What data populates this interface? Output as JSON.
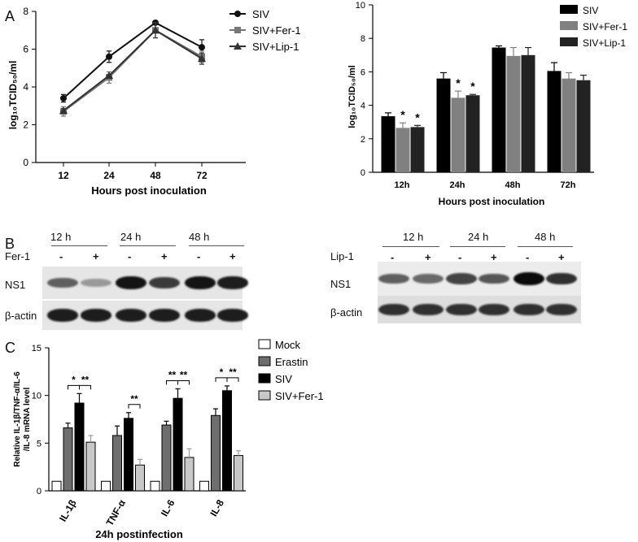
{
  "panels": {
    "a": "A",
    "b": "B",
    "c": "C"
  },
  "chart_data": [
    {
      "type": "line",
      "x": [
        12,
        24,
        48,
        72
      ],
      "xlabel": "Hours post inoculation",
      "ylabel": "log₁₀TCID₅₀/ml",
      "ylim": [
        0,
        8
      ],
      "yticks": [
        0,
        2,
        4,
        6,
        8
      ],
      "legend": "top-right",
      "series": [
        {
          "name": "SIV",
          "values": [
            3.4,
            5.6,
            7.4,
            6.1
          ],
          "errors": [
            0.2,
            0.3,
            0.1,
            0.4
          ],
          "color": "#111111",
          "marker": "circle"
        },
        {
          "name": "SIV+Fer-1",
          "values": [
            2.7,
            4.5,
            7.0,
            5.6
          ],
          "errors": [
            0.25,
            0.3,
            0.4,
            0.3
          ],
          "color": "#777777",
          "marker": "square"
        },
        {
          "name": "SIV+Lip-1",
          "values": [
            2.75,
            4.6,
            7.0,
            5.5
          ],
          "errors": [
            0.1,
            0.05,
            0.4,
            0.3
          ],
          "color": "#333333",
          "marker": "triangle"
        }
      ]
    },
    {
      "type": "bar",
      "categories": [
        "12h",
        "24h",
        "48h",
        "72h"
      ],
      "xlabel": "Hours post inoculation",
      "ylabel": "log₁₀TCID₅₀/ml",
      "ylim": [
        0,
        10
      ],
      "yticks": [
        0,
        2,
        4,
        6,
        8,
        10
      ],
      "legend": "top-right",
      "series": [
        {
          "name": "SIV",
          "values": [
            3.35,
            5.6,
            7.45,
            6.05
          ],
          "errors": [
            0.2,
            0.35,
            0.1,
            0.5
          ],
          "color": "#000000"
        },
        {
          "name": "SIV+Fer-1",
          "values": [
            2.65,
            4.45,
            6.95,
            5.6
          ],
          "errors": [
            0.3,
            0.4,
            0.5,
            0.35
          ],
          "color": "#808080"
        },
        {
          "name": "SIV+Lip-1",
          "values": [
            2.7,
            4.6,
            7.0,
            5.5
          ],
          "errors": [
            0.1,
            0.05,
            0.45,
            0.3
          ],
          "color": "#222222"
        }
      ],
      "annotations": [
        {
          "category": "12h",
          "series": "SIV+Fer-1",
          "text": "*"
        },
        {
          "category": "12h",
          "series": "SIV+Lip-1",
          "text": "*"
        },
        {
          "category": "24h",
          "series": "SIV+Fer-1",
          "text": "*"
        },
        {
          "category": "24h",
          "series": "SIV+Lip-1",
          "text": "*"
        }
      ]
    },
    {
      "type": "bar",
      "categories": [
        "IL-1β",
        "TNF-α",
        "IL-6",
        "IL-8"
      ],
      "xlabel": "24h postinfection",
      "ylabel": "Relative IL-1β/TNF-α/IL-6 /IL-8 mRNA level",
      "ylabel_lines": [
        "Relative IL-1β/TNF-α/IL-6",
        "/IL-8 mRNA level"
      ],
      "ylim": [
        0,
        15
      ],
      "yticks": [
        0,
        5,
        10,
        15
      ],
      "legend": "top-right",
      "series": [
        {
          "name": "Mock",
          "values": [
            1,
            1,
            1,
            1
          ],
          "errors": [
            0,
            0,
            0,
            0
          ],
          "color": "#ffffff"
        },
        {
          "name": "Erastin",
          "values": [
            6.6,
            5.8,
            6.9,
            7.9
          ],
          "errors": [
            0.5,
            1.0,
            0.4,
            0.7
          ],
          "color": "#6e6e6e"
        },
        {
          "name": "SIV",
          "values": [
            9.2,
            7.6,
            9.7,
            10.5
          ],
          "errors": [
            1.0,
            0.6,
            1.0,
            0.5
          ],
          "color": "#000000"
        },
        {
          "name": "SIV+Fer-1",
          "values": [
            5.1,
            2.7,
            3.5,
            3.7
          ],
          "errors": [
            0.7,
            0.6,
            0.9,
            0.5
          ],
          "color": "#c8c8c8"
        }
      ],
      "significance": [
        {
          "category": "IL-1β",
          "from": "Erastin",
          "to": "SIV",
          "text": "*"
        },
        {
          "category": "IL-1β",
          "from": "SIV",
          "to": "SIV+Fer-1",
          "text": "**"
        },
        {
          "category": "TNF-α",
          "from": "SIV",
          "to": "SIV+Fer-1",
          "text": "**"
        },
        {
          "category": "IL-6",
          "from": "Erastin",
          "to": "SIV",
          "text": "**"
        },
        {
          "category": "IL-6",
          "from": "SIV",
          "to": "SIV+Fer-1",
          "text": "**"
        },
        {
          "category": "IL-8",
          "from": "Erastin",
          "to": "SIV",
          "text": "*"
        },
        {
          "category": "IL-8",
          "from": "SIV",
          "to": "SIV+Fer-1",
          "text": "**"
        }
      ]
    }
  ],
  "blots": [
    {
      "treatment": "Fer-1",
      "timepoints": [
        "12 h",
        "24 h",
        "48 h"
      ],
      "signs": [
        "-",
        "+",
        "-",
        "+",
        "-",
        "+"
      ],
      "rows": [
        {
          "label": "NS1",
          "intensity": [
            0.55,
            0.25,
            0.95,
            0.75,
            0.95,
            0.9
          ]
        },
        {
          "label": "β-actin",
          "intensity": [
            0.9,
            0.9,
            0.9,
            0.9,
            0.9,
            0.9
          ]
        }
      ]
    },
    {
      "treatment": "Lip-1",
      "timepoints": [
        "12 h",
        "24 h",
        "48 h"
      ],
      "signs": [
        "-",
        "+",
        "-",
        "+",
        "-",
        "+"
      ],
      "rows": [
        {
          "label": "NS1",
          "intensity": [
            0.55,
            0.5,
            0.7,
            0.6,
            1.0,
            0.8
          ]
        },
        {
          "label": "β-actin",
          "intensity": [
            0.8,
            0.8,
            0.8,
            0.8,
            0.8,
            0.8
          ]
        }
      ]
    }
  ]
}
